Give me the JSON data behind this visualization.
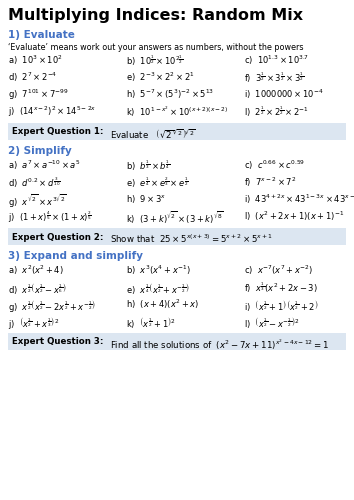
{
  "title": "Multiplying Indices: Random Mix",
  "section1_header": "1) Evaluate",
  "section1_desc": "‘Evaluate’ means work out your answers as numbers, without the powers",
  "section1_items": [
    [
      "a)  $10^3 \\times 10^2$",
      "b)  $10^{\\frac{1}{2}} \\times 10^{2\\frac{1}{2}}$",
      "c)  $10^{1.3} \\times 10^{3.7}$"
    ],
    [
      "d)  $2^7 \\times 2^{-4}$",
      "e)  $2^{-3} \\times 2^2 \\times 2^1$",
      "f)  $3^{\\frac{1}{2}} \\times 3^{\\frac{1}{2}} \\times 3^{\\frac{1}{2}}$"
    ],
    [
      "g)  $7^{101} \\times 7^{-99}$",
      "h)  $5^{-7} \\times (5^3)^{-2} \\times 5^{13}$",
      "i)  $1000000 \\times 10^{-4}$"
    ],
    [
      "j)  $(14^{x-2})^2 \\times 14^{5-2x}$",
      "k)  $10^{1-x^2} \\times 10^{(x+2)(x-2)}$",
      "l)  $2^{\\frac{1}{2}} \\times 2^{\\frac{1}{2}} \\times 2^{-1}$"
    ]
  ],
  "expert1_label": "Expert Question 1:",
  "expert1_text": "Evaluate   $\\left(\\sqrt{2}^{\\sqrt{2}}\\right)^{\\!\\sqrt{2}}$",
  "section2_header": "2) Simplify",
  "section2_items": [
    [
      "a)  $a^7 \\times a^{-10} \\times a^5$",
      "b)  $b^{\\frac{1}{3}} \\times b^{\\frac{1}{4}}$",
      "c)  $c^{0.66} \\times c^{0.59}$"
    ],
    [
      "d)  $d^{0.2} \\times d^{\\frac{3}{10}}$",
      "e)  $e^{\\frac{1}{4}} \\times e^{\\frac{2}{3}} \\times e^{\\frac{1}{2}}$",
      "f)  $7^{x-2} \\times 7^2$"
    ],
    [
      "g)  $x^{\\sqrt{2}} \\times x^{3\\sqrt{2}}$",
      "h)  $9 \\times 3^x$",
      "i)  $43^{4+2x} \\times 43^{1-3x} \\times 43^{x-4}$"
    ],
    [
      "j)  $(1+x)^{\\frac{4}{5}} \\times (1+x)^{\\frac{2}{5}}$",
      "k)  $(3+k)^{\\sqrt{2}} \\times (3+k)^{\\sqrt{8}}$",
      "l)  $(x^2+2x+1)(x+1)^{-1}$"
    ]
  ],
  "expert2_label": "Expert Question 2:",
  "expert2_text": "Show that  $25 \\times 5^{x(x+3)} = 5^{x+2} \\times 5^{x+1}$",
  "section3_header": "3) Expand and simplify",
  "section3_items": [
    [
      "a)  $x^2(x^2+4)$",
      "b)  $x^3(x^4+x^{-1})$",
      "c)  $x^{-7}(x^7+x^{-2})$"
    ],
    [
      "d)  $x^{\\frac{1}{2}}\\left(x^{\\frac{1}{2}}-x^{\\frac{1}{6}}\\right)$",
      "e)  $x^{\\frac{1}{4}}\\left(x^{\\frac{1}{2}}+x^{-\\frac{1}{2}}\\right)$",
      "f)  $x^{\\frac{1}{3}}(x^2+2x-3)$"
    ],
    [
      "g)  $x^{\\frac{1}{2}}\\left(x^{\\frac{1}{2}}-2x^{\\frac{1}{2}}+x^{-\\frac{1}{2}}\\right)$",
      "h)  $(x+4)(x^2+x)$",
      "i)  $\\left(x^{\\frac{1}{2}}+1\\right)\\left(x^{\\frac{1}{2}}+2\\right)$"
    ],
    [
      "j)  $\\left(x^{\\frac{1}{2}}+x^{\\frac{1}{3}}\\right)^2$",
      "k)  $\\left(x^{\\frac{1}{2}}+1\\right)^2$",
      "l)  $\\left(x^{\\frac{1}{2}}-x^{-\\frac{1}{2}}\\right)^2$"
    ]
  ],
  "expert3_label": "Expert Question 3:",
  "expert3_text": "Find all the solutions of  $(x^2-7x+11)^{x^2-4x-12}=1$",
  "bg_color": "#ffffff",
  "header_color": "#4472c4",
  "expert_bg": "#dce6f1",
  "text_color": "#000000",
  "title_fontsize": 11.5,
  "section_fontsize": 7.5,
  "item_fontsize": 6.0,
  "expert_fontsize": 6.2,
  "desc_fontsize": 5.8
}
